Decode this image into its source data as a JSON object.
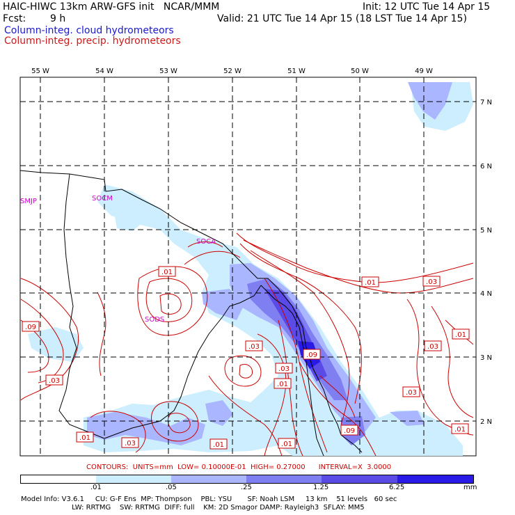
{
  "header": {
    "model_title": "HAIC-HIWC 13km ARW-GFS init   NCAR/MMM",
    "init": "Init: 12 UTC Tue 14 Apr 15",
    "fcst_label": "Fcst:",
    "fcst_value": "9 h",
    "valid": "Valid: 21 UTC Tue 14 Apr 15 (18 LST Tue 14 Apr 15)",
    "field1": "Column-integ. cloud hydrometeors",
    "field2": "Column-integ. precip. hydrometeors"
  },
  "colors": {
    "cloud_text": "#1a1acc",
    "precip_text": "#cc1a1a",
    "shade_1": "#cceeff",
    "shade_2": "#aab6ff",
    "shade_3": "#7f7ff2",
    "shade_4": "#5a4ae6",
    "shade_5": "#2a1ae6",
    "contour": "#cc0000",
    "station": "#cc00cc"
  },
  "map": {
    "lon_labels": [
      "55 W",
      "54 W",
      "53 W",
      "52 W",
      "51 W",
      "50 W",
      "49 W"
    ],
    "lat_labels": [
      "7 N",
      "6 N",
      "5 N",
      "4 N",
      "3 N",
      "2 N"
    ],
    "stations": [
      "SMJP",
      "SOCM",
      "SOCA",
      "SODS"
    ],
    "contour_labels": [
      ".01",
      ".09",
      ".03",
      ".03",
      ".03",
      ".01",
      ".09",
      ".01",
      ".03",
      ".01",
      ".01",
      ".03",
      ".01",
      ".03",
      ".01",
      ".03",
      ".01",
      ".09"
    ]
  },
  "contour_info": "CONTOURS:  UNITS=mm  LOW= 0.10000E-01  HIGH= 0.27000      INTERVAL=X  3.0000",
  "colorbar": {
    "ticks": [
      ".01",
      ".05",
      ".25",
      "1.25",
      "6.25"
    ],
    "unit": "mm"
  },
  "model_info": {
    "line1": "Model Info: V3.6.1     CU: G-F Ens  MP: Thompson    PBL: YSU       SF: Noah LSM     13 km    51 levels   60 sec",
    "line2": "                       LW: RRTMG    SW: RRTMG  DIFF: full    KM: 2D Smagor DAMP: Rayleigh3  SFLAY: MM5"
  }
}
